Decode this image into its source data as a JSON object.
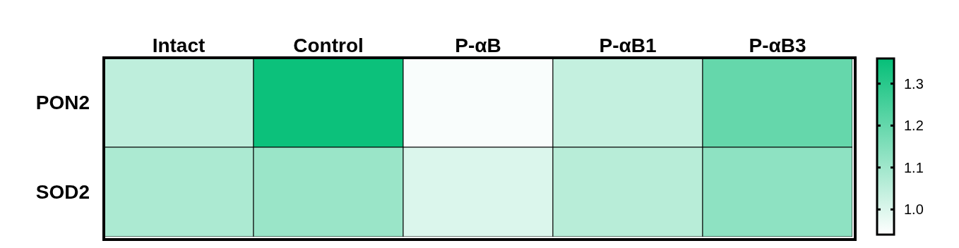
{
  "chart_data": {
    "type": "heatmap",
    "categories": [
      "Intact",
      "Control",
      "P-αB",
      "P-αB1",
      "P-αB3"
    ],
    "y_categories": [
      "PON2",
      "SOD2"
    ],
    "cells": [
      [
        1.05,
        1.35,
        0.95,
        1.04,
        1.2
      ],
      [
        1.08,
        1.11,
        1.0,
        1.06,
        1.13
      ]
    ],
    "clim": [
      0.94,
      1.36
    ],
    "cticks": [
      {
        "value": 1,
        "label": "1.0"
      },
      1.1,
      1.2,
      1.3
    ]
  }
}
